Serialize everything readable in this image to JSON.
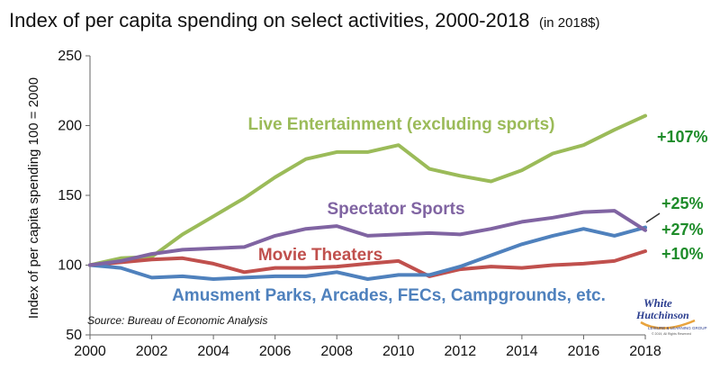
{
  "chart_data": {
    "type": "line",
    "title": "Index of per capita spending on select activities, 2000-2018",
    "title_suffix": "(in 2018$)",
    "xlabel": "",
    "ylabel": "Index of per capita spending 100 = 2000",
    "x": [
      2000,
      2001,
      2002,
      2003,
      2004,
      2005,
      2006,
      2007,
      2008,
      2009,
      2010,
      2011,
      2012,
      2013,
      2014,
      2015,
      2016,
      2017,
      2018
    ],
    "x_ticks": [
      "2000",
      "2002",
      "2004",
      "2006",
      "2008",
      "2010",
      "2012",
      "2014",
      "2016",
      "2018"
    ],
    "y_ticks": [
      "50",
      "100",
      "150",
      "200",
      "250"
    ],
    "xlim": [
      2000,
      2018
    ],
    "ylim": [
      50,
      250
    ],
    "grid": false,
    "series": [
      {
        "name": "Live Entertainment (excluding sports)",
        "color": "#9bbb59",
        "values": [
          100,
          105,
          106,
          122,
          135,
          148,
          163,
          176,
          181,
          181,
          186,
          169,
          164,
          160,
          168,
          180,
          186,
          197,
          207
        ],
        "end_label": "+107%"
      },
      {
        "name": "Spectator Sports",
        "color": "#8064a2",
        "values": [
          100,
          103,
          108,
          111,
          112,
          113,
          121,
          126,
          128,
          121,
          122,
          123,
          122,
          126,
          131,
          134,
          138,
          139,
          125
        ],
        "end_label": "+25%"
      },
      {
        "name": "Movie Theaters",
        "color": "#c0504d",
        "values": [
          100,
          102,
          104,
          105,
          101,
          95,
          98,
          98,
          99,
          101,
          103,
          92,
          97,
          99,
          98,
          100,
          101,
          103,
          110
        ],
        "end_label": "+10%"
      },
      {
        "name": "Amusment Parks, Arcades, FECs, Campgrounds, etc.",
        "color": "#4f81bd",
        "values": [
          100,
          98,
          91,
          92,
          90,
          91,
          92,
          92,
          95,
          90,
          93,
          93,
          99,
          107,
          115,
          121,
          126,
          121,
          127
        ],
        "end_label": "+27%"
      }
    ],
    "source": "Source: Bureau of Economic Analysis"
  },
  "logo": {
    "line1": "White",
    "line2": "Hutchinson",
    "tagline": "LEISURE & LEARNING GROUP",
    "copyright": "© 2019, All Rights Reserved"
  }
}
